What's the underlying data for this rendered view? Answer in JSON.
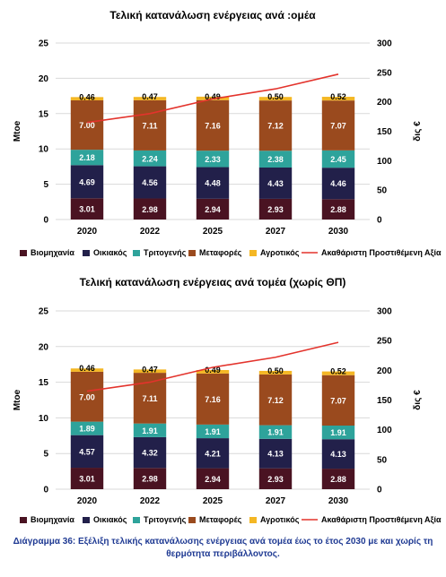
{
  "colors": {
    "industry": "#4a1322",
    "residential": "#22204a",
    "tertiary": "#2ea39b",
    "transport": "#9a4a1e",
    "agriculture": "#f4b724",
    "gva": "#e3332c",
    "grid": "#d9d9d9"
  },
  "chart_data": [
    {
      "type": "bar",
      "stacked": true,
      "title": "Τελική κατανάλωση ενέργειας ανά :ομέα",
      "categories": [
        "2020",
        "2022",
        "2025",
        "2027",
        "2030"
      ],
      "ylabel": "Mtoe",
      "y2label": "δις €",
      "ylim": [
        0,
        25
      ],
      "y2lim": [
        0,
        300
      ],
      "yticks": [
        "0",
        "5",
        "10",
        "15",
        "20",
        "25"
      ],
      "y2ticks": [
        "0",
        "50",
        "100",
        "150",
        "200",
        "250",
        "300"
      ],
      "series": [
        {
          "name": "Βιομηχανία",
          "color": "#4a1322",
          "values": [
            3.01,
            2.98,
            2.94,
            2.93,
            2.88
          ],
          "labels": [
            "3.01",
            "2.98",
            "2.94",
            "2.93",
            "2.88"
          ]
        },
        {
          "name": "Οικιακός",
          "color": "#22204a",
          "values": [
            4.69,
            4.56,
            4.48,
            4.43,
            4.46
          ],
          "labels": [
            "4.69",
            "4.56",
            "4.48",
            "4.43",
            "4.46"
          ]
        },
        {
          "name": "Τριτογενής",
          "color": "#2ea39b",
          "values": [
            2.18,
            2.24,
            2.33,
            2.38,
            2.45
          ],
          "labels": [
            "2.18",
            "2.24",
            "2.33",
            "2.38",
            "2.45"
          ]
        },
        {
          "name": "Μεταφορές",
          "color": "#9a4a1e",
          "values": [
            7.0,
            7.11,
            7.16,
            7.12,
            7.07
          ],
          "labels": [
            "7.00",
            "7.11",
            "7.16",
            "7.12",
            "7.07"
          ]
        },
        {
          "name": "Αγροτικός",
          "color": "#f4b724",
          "values": [
            0.46,
            0.47,
            0.49,
            0.5,
            0.52
          ],
          "labels": [
            "0.46",
            "0.47",
            "0.49",
            "0.50",
            "0.52"
          ]
        }
      ],
      "line_series": {
        "name": "Ακαθάριστη Προστιθέμενη Αξία",
        "axis": "secondary",
        "color": "#e3332c",
        "values": [
          165,
          180,
          205,
          222,
          247
        ]
      },
      "grid": true,
      "legend": "bottom"
    },
    {
      "type": "bar",
      "stacked": true,
      "title": "Τελική κατανάλωση ενέργειας ανά τομέα (χωρίς ΘΠ)",
      "categories": [
        "2020",
        "2022",
        "2025",
        "2027",
        "2030"
      ],
      "ylabel": "Mtoe",
      "y2label": "δις €",
      "ylim": [
        0,
        25
      ],
      "y2lim": [
        0,
        300
      ],
      "yticks": [
        "0",
        "5",
        "10",
        "15",
        "20",
        "25"
      ],
      "y2ticks": [
        "0",
        "50",
        "100",
        "150",
        "200",
        "250",
        "300"
      ],
      "series": [
        {
          "name": "Βιομηχανία",
          "color": "#4a1322",
          "values": [
            3.01,
            2.98,
            2.94,
            2.93,
            2.88
          ],
          "labels": [
            "3.01",
            "2.98",
            "2.94",
            "2.93",
            "2.88"
          ]
        },
        {
          "name": "Οικιακός",
          "color": "#22204a",
          "values": [
            4.57,
            4.32,
            4.21,
            4.13,
            4.13
          ],
          "labels": [
            "4.57",
            "4.32",
            "4.21",
            "4.13",
            "4.13"
          ]
        },
        {
          "name": "Τριτογενής",
          "color": "#2ea39b",
          "values": [
            1.89,
            1.91,
            1.91,
            1.91,
            1.91
          ],
          "labels": [
            "1.89",
            "1.91",
            "1.91",
            "1.91",
            "1.91"
          ]
        },
        {
          "name": "Μεταφορές",
          "color": "#9a4a1e",
          "values": [
            7.0,
            7.11,
            7.16,
            7.12,
            7.07
          ],
          "labels": [
            "7.00",
            "7.11",
            "7.16",
            "7.12",
            "7.07"
          ]
        },
        {
          "name": "Αγροτικός",
          "color": "#f4b724",
          "values": [
            0.46,
            0.47,
            0.49,
            0.5,
            0.52
          ],
          "labels": [
            "0.46",
            "0.47",
            "0.49",
            "0.50",
            "0.52"
          ]
        }
      ],
      "line_series": {
        "name": "Ακαθάριστη Προστιθέμενη Αξία",
        "axis": "secondary",
        "color": "#e3332c",
        "values": [
          165,
          180,
          205,
          222,
          247
        ]
      },
      "grid": true,
      "legend": "bottom"
    }
  ],
  "caption": "Διάγραμμα 36: Εξέλιξη τελικής κατανάλωσης ενέργειας ανά τομέα έως το έτος 2030 με και χωρίς τη θερμότητα περιβάλλοντος."
}
